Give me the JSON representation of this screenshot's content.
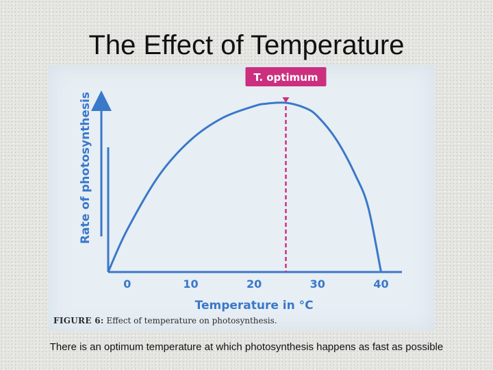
{
  "slide": {
    "title": "The Effect of Temperature",
    "footer": "There is an optimum temperature at which photosynthesis happens as fast as possible"
  },
  "figure": {
    "caption_label": "FIGURE 6:",
    "caption_text": " Effect of temperature on photosynthesis."
  },
  "colors": {
    "curve": "#3a78c9",
    "axis": "#3a78c9",
    "optimum": "#cc2f7e",
    "label": "#3a78c9"
  },
  "chart_data": {
    "type": "line",
    "title": "",
    "xlabel": "Temperature in °C",
    "ylabel": "Rate of photosynthesis",
    "xlim": [
      -3,
      42
    ],
    "ylim": [
      0,
      100
    ],
    "x_ticks": [
      0,
      10,
      20,
      30,
      40
    ],
    "x_tick_labels": [
      "0",
      "10",
      "20",
      "30",
      "40"
    ],
    "grid": false,
    "series": [
      {
        "name": "Rate of photosynthesis",
        "x": [
          -3,
          0,
          5,
          10,
          15,
          20,
          22,
          25,
          28,
          30,
          33,
          36,
          38,
          40
        ],
        "y": [
          0,
          25,
          57,
          78,
          91,
          98,
          99.5,
          100,
          97,
          92,
          78,
          57,
          38,
          0
        ]
      }
    ],
    "annotations": [
      {
        "type": "vline",
        "x": 25,
        "label": "T. optimum"
      }
    ]
  }
}
